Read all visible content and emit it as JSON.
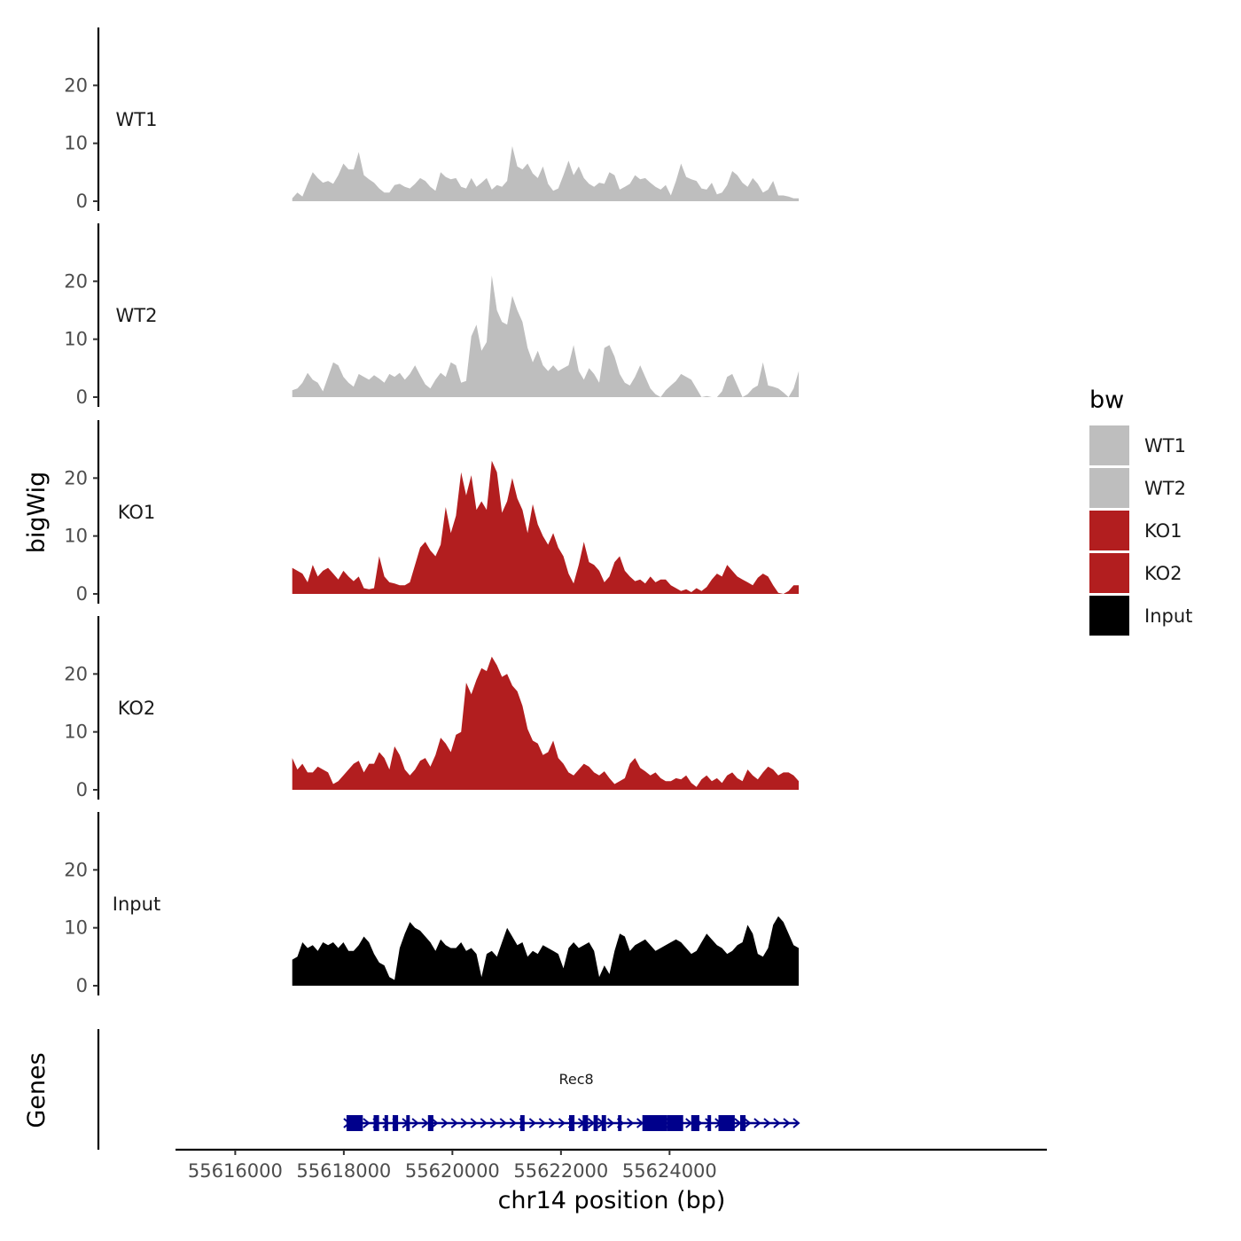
{
  "chart_data": {
    "type": "area",
    "chromosome": "chr14",
    "xlabel": "chr14 position (bp)",
    "ylabel": "bigWig",
    "xlim": [
      55614900,
      55630950
    ],
    "xticks": [
      55616000,
      55618000,
      55620000,
      55622000,
      55624000
    ],
    "xtick_labels": [
      "55616000",
      "55618000",
      "55620000",
      "55622000",
      "55624000"
    ],
    "ylim": [
      0,
      30
    ],
    "yticks": [
      0,
      10,
      20
    ],
    "ytick_labels": [
      "0",
      "10",
      "20"
    ],
    "track_start": 55617050,
    "track_end": 55626380,
    "legend": {
      "title": "bw",
      "position": "right",
      "entries": [
        {
          "label": "WT1",
          "color": "#bebebe"
        },
        {
          "label": "WT2",
          "color": "#bebebe"
        },
        {
          "label": "KO1",
          "color": "#b21e1f"
        },
        {
          "label": "KO2",
          "color": "#b21e1f"
        },
        {
          "label": "Input",
          "color": "#000000"
        }
      ]
    },
    "series": [
      {
        "name": "WT1",
        "color": "#bebebe",
        "values": [
          0.5,
          1.5,
          0.8,
          3.0,
          5.0,
          4.0,
          3.2,
          3.5,
          3.0,
          4.5,
          6.5,
          5.5,
          5.5,
          8.5,
          4.5,
          3.8,
          3.2,
          2.2,
          1.5,
          1.5,
          2.8,
          3.0,
          2.5,
          2.2,
          3.0,
          4.0,
          3.5,
          2.5,
          1.8,
          5.0,
          4.2,
          3.8,
          4.0,
          2.5,
          2.2,
          4.0,
          2.5,
          3.2,
          4.0,
          2.0,
          2.8,
          2.5,
          3.5,
          9.5,
          6.0,
          5.5,
          6.5,
          4.8,
          4.0,
          6.0,
          3.0,
          1.8,
          2.2,
          4.5,
          7.0,
          4.5,
          6.0,
          4.0,
          3.0,
          2.5,
          3.2,
          3.0,
          5.0,
          4.5,
          2.0,
          2.5,
          3.0,
          4.5,
          3.8,
          4.0,
          3.2,
          2.5,
          2.0,
          2.8,
          1.0,
          3.5,
          6.5,
          4.2,
          3.8,
          3.5,
          2.2,
          2.0,
          3.2,
          1.2,
          1.5,
          2.8,
          5.2,
          4.5,
          3.2,
          2.5,
          4.0,
          3.0,
          1.5,
          2.0,
          3.5,
          1.0,
          1.0,
          0.8,
          0.5,
          0.5
        ]
      },
      {
        "name": "WT2",
        "color": "#bebebe",
        "values": [
          1.2,
          1.5,
          2.5,
          4.2,
          3.0,
          2.5,
          1.0,
          3.5,
          6.0,
          5.5,
          3.5,
          2.5,
          1.8,
          4.0,
          3.5,
          3.0,
          3.8,
          3.2,
          2.5,
          4.0,
          3.5,
          4.2,
          3.0,
          4.0,
          5.5,
          3.8,
          2.2,
          1.5,
          3.0,
          4.2,
          3.5,
          6.0,
          5.5,
          2.5,
          2.8,
          10.5,
          12.5,
          8.0,
          9.5,
          21.0,
          15.0,
          13.0,
          12.5,
          17.5,
          15.0,
          13.0,
          8.5,
          6.0,
          8.0,
          5.5,
          4.5,
          5.5,
          4.5,
          5.0,
          5.5,
          9.0,
          4.5,
          3.0,
          5.0,
          4.0,
          2.5,
          8.5,
          9.0,
          7.0,
          4.0,
          2.5,
          2.0,
          3.5,
          5.5,
          3.5,
          1.5,
          0.5,
          0.0,
          1.2,
          2.0,
          2.8,
          4.0,
          3.5,
          3.0,
          1.5,
          0.0,
          0.2,
          0.0,
          0.0,
          1.0,
          3.5,
          4.0,
          2.0,
          0.0,
          0.5,
          1.5,
          2.0,
          6.0,
          2.0,
          1.8,
          1.5,
          0.8,
          0.0,
          1.5,
          4.5
        ]
      },
      {
        "name": "KO1",
        "color": "#b21e1f",
        "values": [
          4.5,
          4.0,
          3.5,
          2.0,
          5.0,
          3.0,
          4.0,
          4.5,
          3.5,
          2.5,
          4.0,
          3.0,
          2.2,
          3.0,
          1.0,
          0.8,
          1.0,
          6.5,
          3.0,
          2.0,
          1.8,
          1.5,
          1.5,
          2.0,
          5.0,
          8.0,
          9.0,
          7.5,
          6.5,
          8.5,
          15.0,
          10.5,
          13.5,
          21.0,
          17.0,
          20.5,
          14.5,
          16.0,
          14.5,
          23.0,
          21.0,
          14.0,
          16.0,
          20.0,
          16.5,
          14.5,
          10.5,
          15.5,
          12.0,
          10.0,
          8.5,
          10.5,
          8.0,
          6.5,
          3.5,
          1.8,
          5.0,
          9.0,
          5.5,
          5.0,
          4.0,
          2.0,
          3.0,
          5.5,
          6.5,
          4.0,
          3.0,
          2.2,
          2.5,
          1.8,
          3.0,
          2.0,
          2.5,
          2.5,
          1.5,
          1.0,
          0.5,
          0.8,
          0.3,
          1.0,
          0.5,
          1.2,
          2.5,
          3.5,
          3.0,
          5.0,
          4.0,
          3.0,
          2.5,
          2.0,
          1.5,
          2.8,
          3.5,
          3.0,
          1.5,
          0.2,
          0.0,
          0.5,
          1.5,
          1.5
        ]
      },
      {
        "name": "KO2",
        "color": "#b21e1f",
        "values": [
          5.5,
          3.5,
          4.5,
          3.0,
          3.0,
          4.0,
          3.5,
          3.0,
          1.0,
          1.5,
          2.5,
          3.5,
          4.5,
          5.0,
          3.0,
          4.5,
          4.5,
          6.5,
          5.5,
          3.5,
          7.5,
          6.0,
          3.5,
          2.5,
          3.5,
          5.0,
          5.5,
          4.0,
          6.0,
          9.0,
          8.0,
          6.5,
          9.5,
          10.0,
          18.5,
          16.5,
          19.0,
          21.0,
          20.5,
          23.0,
          21.5,
          19.5,
          20.0,
          18.0,
          17.0,
          14.5,
          10.5,
          8.5,
          8.0,
          6.0,
          6.5,
          8.5,
          5.5,
          4.5,
          3.0,
          2.5,
          3.5,
          4.5,
          4.0,
          3.0,
          2.5,
          3.2,
          2.0,
          1.0,
          1.5,
          2.0,
          4.5,
          5.5,
          3.8,
          3.2,
          2.5,
          3.0,
          2.0,
          1.5,
          1.5,
          2.0,
          1.8,
          2.5,
          1.2,
          0.5,
          1.8,
          2.5,
          1.5,
          2.0,
          1.2,
          2.5,
          3.0,
          2.0,
          1.5,
          3.5,
          2.5,
          1.8,
          3.0,
          4.0,
          3.5,
          2.5,
          3.0,
          3.0,
          2.5,
          1.5
        ]
      },
      {
        "name": "Input",
        "color": "#000000",
        "values": [
          4.5,
          5.0,
          7.5,
          6.5,
          7.0,
          6.0,
          7.5,
          7.0,
          7.5,
          6.5,
          7.5,
          6.0,
          6.0,
          7.0,
          8.5,
          7.5,
          5.5,
          4.0,
          3.5,
          1.5,
          1.0,
          6.5,
          9.0,
          11.0,
          10.0,
          9.5,
          8.5,
          7.5,
          6.0,
          8.0,
          7.0,
          6.5,
          6.5,
          7.5,
          6.0,
          6.5,
          5.5,
          1.5,
          5.5,
          6.0,
          5.0,
          7.5,
          10.0,
          8.5,
          7.0,
          7.5,
          5.0,
          6.0,
          5.5,
          7.0,
          6.5,
          6.0,
          5.5,
          3.0,
          6.5,
          7.5,
          6.5,
          7.0,
          7.5,
          6.0,
          1.5,
          3.5,
          2.0,
          6.0,
          9.0,
          8.5,
          6.0,
          7.0,
          7.5,
          8.0,
          7.0,
          6.0,
          6.5,
          7.0,
          7.5,
          8.0,
          7.5,
          6.5,
          5.5,
          6.0,
          7.5,
          9.0,
          8.0,
          7.0,
          6.5,
          5.5,
          6.0,
          7.0,
          7.5,
          10.5,
          9.0,
          5.5,
          5.0,
          6.5,
          10.5,
          12.0,
          11.0,
          9.0,
          7.0,
          6.5
        ]
      }
    ],
    "gene_track": {
      "label": "Genes",
      "gene_name": "Rec8",
      "color": "#00008b",
      "start": 55618050,
      "end": 55626350,
      "strand": "+",
      "exons": [
        [
          55618050,
          55618350
        ],
        [
          55618550,
          55618650
        ],
        [
          55618750,
          55618800
        ],
        [
          55618900,
          55619000
        ],
        [
          55619150,
          55619200
        ],
        [
          55619550,
          55619650
        ],
        [
          55621250,
          55621330
        ],
        [
          55622150,
          55622250
        ],
        [
          55622400,
          55622500
        ],
        [
          55622600,
          55622680
        ],
        [
          55622750,
          55622830
        ],
        [
          55623050,
          55623100
        ],
        [
          55623500,
          55623950
        ],
        [
          55623950,
          55624250
        ],
        [
          55624400,
          55624550
        ],
        [
          55624700,
          55624750
        ],
        [
          55624900,
          55625200
        ],
        [
          55625300,
          55625400
        ]
      ]
    }
  }
}
